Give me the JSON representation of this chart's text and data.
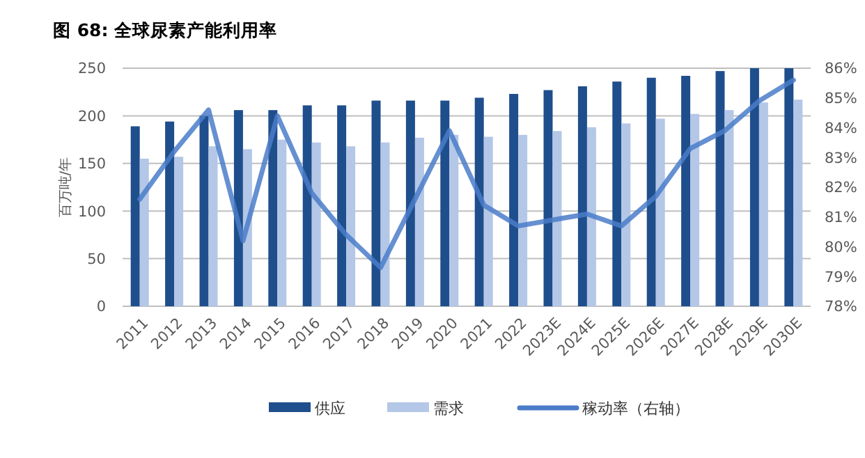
{
  "chart_data": {
    "type": "bar",
    "title": "图 68:  全球尿素产能利用率",
    "ylabel": "百万吨/年",
    "categories": [
      "2011",
      "2012",
      "2013",
      "2014",
      "2015",
      "2016",
      "2017",
      "2018",
      "2019",
      "2020",
      "2021",
      "2022",
      "2023E",
      "2024E",
      "2025E",
      "2026E",
      "2027E",
      "2028E",
      "2029E",
      "2030E"
    ],
    "series": [
      {
        "name": "供应",
        "color": "#1f4e8c",
        "values": [
          189,
          194,
          200,
          206,
          206,
          211,
          211,
          216,
          216,
          216,
          219,
          223,
          227,
          231,
          236,
          240,
          242,
          247,
          250,
          250
        ]
      },
      {
        "name": "需求",
        "color": "#b4c7e7",
        "values": [
          155,
          157,
          168,
          165,
          175,
          172,
          168,
          172,
          177,
          180,
          178,
          180,
          184,
          188,
          192,
          197,
          202,
          206,
          214,
          217
        ]
      },
      {
        "name": "稼动率（右轴）",
        "type": "line",
        "axis": "y2",
        "color": "#4a7cc9",
        "values": [
          81.6,
          83.2,
          84.6,
          80.2,
          84.4,
          81.8,
          80.4,
          79.3,
          81.6,
          83.9,
          81.4,
          80.7,
          80.9,
          81.1,
          80.7,
          81.7,
          83.3,
          83.9,
          84.9,
          85.6
        ]
      }
    ],
    "ylim": [
      0,
      250
    ],
    "yticks": [
      0,
      50,
      100,
      150,
      200,
      250
    ],
    "y2lim": [
      78,
      86
    ],
    "y2ticks": [
      {
        "value": 78,
        "label": "78%"
      },
      {
        "value": 79,
        "label": "79%"
      },
      {
        "value": 80,
        "label": "80%"
      },
      {
        "value": 81,
        "label": "81%"
      },
      {
        "value": 82,
        "label": "82%"
      },
      {
        "value": 83,
        "label": "83%"
      },
      {
        "value": 84,
        "label": "84%"
      },
      {
        "value": 85,
        "label": "85%"
      },
      {
        "value": 86,
        "label": "86%"
      }
    ],
    "grid": "y",
    "legend": "bottom",
    "line_style": "solid",
    "marker": "none"
  }
}
